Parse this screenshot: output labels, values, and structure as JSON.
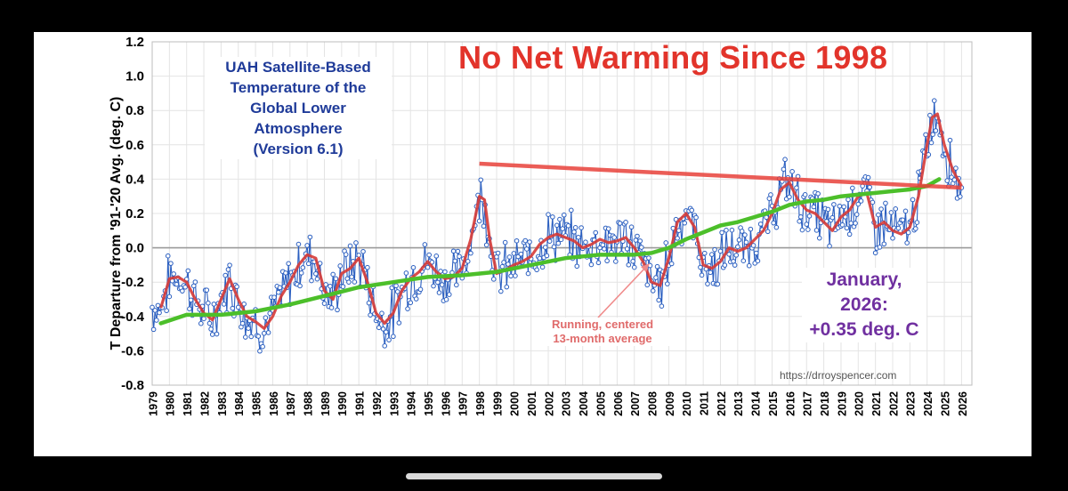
{
  "headline": "No Net Warming Since 1998",
  "title_lines": [
    "UAH Satellite-Based",
    "Temperature of the",
    "Global Lower Atmosphere",
    "(Version 6.1)"
  ],
  "annotation": {
    "line1": "January, 2026:",
    "line2": "+0.35 deg. C"
  },
  "avg_label": {
    "line1": "Running, centered",
    "line2": "13-month average"
  },
  "source_url": "https://drroyspencer.com",
  "colors": {
    "monthly": "#2b5fc0",
    "running_avg": "#d63a36",
    "trend_flat": "#e8413a",
    "trend_long": "#4cbf2a",
    "arrow": "#f08a8a"
  },
  "chart_data": {
    "type": "line",
    "ylabel": "T Departure from '91-'20 Avg. (deg. C)",
    "xlabel": "",
    "ylim": [
      -0.8,
      1.2
    ],
    "yticks": [
      "-0.8",
      "-0.6",
      "-0.4",
      "-0.2",
      "0.0",
      "0.2",
      "0.4",
      "0.6",
      "0.8",
      "1.0",
      "1.2"
    ],
    "xticks": [
      "1979",
      "1980",
      "1981",
      "1982",
      "1983",
      "1984",
      "1985",
      "1986",
      "1987",
      "1988",
      "1989",
      "1990",
      "1991",
      "1992",
      "1993",
      "1994",
      "1995",
      "1996",
      "1997",
      "1998",
      "1999",
      "2000",
      "2001",
      "2002",
      "2003",
      "2004",
      "2005",
      "2006",
      "2007",
      "2008",
      "2009",
      "2010",
      "2011",
      "2012",
      "2013",
      "2014",
      "2015",
      "2016",
      "2017",
      "2018",
      "2019",
      "2020",
      "2021",
      "2022",
      "2023",
      "2024",
      "2025",
      "2026"
    ],
    "grid": true,
    "series": [
      {
        "kind": "running_average",
        "x": [
          1979.5,
          1980.0,
          1980.5,
          1981.0,
          1981.5,
          1982.0,
          1982.5,
          1983.0,
          1983.5,
          1984.0,
          1984.5,
          1985.0,
          1985.5,
          1986.0,
          1986.5,
          1987.0,
          1987.5,
          1988.0,
          1988.5,
          1989.0,
          1989.5,
          1990.0,
          1990.5,
          1991.0,
          1991.5,
          1992.0,
          1992.5,
          1993.0,
          1993.5,
          1994.0,
          1994.5,
          1995.0,
          1995.5,
          1996.0,
          1996.5,
          1997.0,
          1997.5,
          1998.0,
          1998.3,
          1998.6,
          1999.0,
          1999.5,
          2000.0,
          2000.5,
          2001.0,
          2001.5,
          2002.0,
          2002.5,
          2003.0,
          2003.5,
          2004.0,
          2004.5,
          2005.0,
          2005.5,
          2006.0,
          2006.5,
          2007.0,
          2007.5,
          2008.0,
          2008.5,
          2009.0,
          2009.5,
          2010.0,
          2010.5,
          2011.0,
          2011.5,
          2012.0,
          2012.5,
          2013.0,
          2013.5,
          2014.0,
          2014.5,
          2015.0,
          2015.5,
          2016.0,
          2016.5,
          2017.0,
          2017.5,
          2018.0,
          2018.5,
          2019.0,
          2019.5,
          2020.0,
          2020.5,
          2021.0,
          2021.5,
          2022.0,
          2022.5,
          2023.0,
          2023.5,
          2024.0,
          2024.3,
          2024.6,
          2025.0,
          2025.5,
          2026.0
        ],
        "y": [
          -0.35,
          -0.18,
          -0.17,
          -0.2,
          -0.3,
          -0.38,
          -0.42,
          -0.3,
          -0.18,
          -0.3,
          -0.4,
          -0.43,
          -0.47,
          -0.4,
          -0.28,
          -0.2,
          -0.1,
          -0.04,
          -0.06,
          -0.25,
          -0.3,
          -0.15,
          -0.12,
          -0.06,
          -0.2,
          -0.38,
          -0.44,
          -0.38,
          -0.25,
          -0.18,
          -0.14,
          -0.08,
          -0.14,
          -0.18,
          -0.17,
          -0.12,
          0.05,
          0.3,
          0.28,
          0.05,
          -0.15,
          -0.13,
          -0.1,
          -0.08,
          -0.05,
          0.02,
          0.06,
          0.08,
          0.06,
          0.04,
          0.0,
          0.02,
          0.05,
          0.03,
          0.04,
          0.06,
          0.0,
          -0.08,
          -0.2,
          -0.22,
          -0.06,
          0.15,
          0.2,
          0.12,
          -0.1,
          -0.12,
          -0.08,
          0.0,
          -0.02,
          0.0,
          0.05,
          0.1,
          0.2,
          0.34,
          0.38,
          0.28,
          0.22,
          0.2,
          0.15,
          0.1,
          0.18,
          0.22,
          0.3,
          0.32,
          0.12,
          0.15,
          0.1,
          0.08,
          0.12,
          0.3,
          0.6,
          0.76,
          0.78,
          0.6,
          0.45,
          0.36
        ]
      },
      {
        "kind": "long_term_trend",
        "x": [
          1979.5,
          1981,
          1983,
          1985,
          1987,
          1989,
          1991,
          1993,
          1995,
          1997,
          1999,
          2001,
          2003,
          2005,
          2007,
          2008,
          2009,
          2010,
          2011,
          2012,
          2013,
          2014,
          2015,
          2016,
          2017,
          2018,
          2019,
          2020,
          2021,
          2022,
          2023,
          2024,
          2024.7
        ],
        "y": [
          -0.44,
          -0.39,
          -0.39,
          -0.37,
          -0.33,
          -0.28,
          -0.23,
          -0.2,
          -0.17,
          -0.16,
          -0.14,
          -0.1,
          -0.06,
          -0.04,
          -0.04,
          -0.03,
          0.0,
          0.05,
          0.09,
          0.13,
          0.15,
          0.18,
          0.21,
          0.25,
          0.27,
          0.28,
          0.3,
          0.31,
          0.32,
          0.33,
          0.34,
          0.36,
          0.4
        ]
      },
      {
        "kind": "flat_trend_since_1998",
        "x": [
          1998.0,
          2026.0
        ],
        "y": [
          0.49,
          0.35
        ]
      }
    ]
  }
}
